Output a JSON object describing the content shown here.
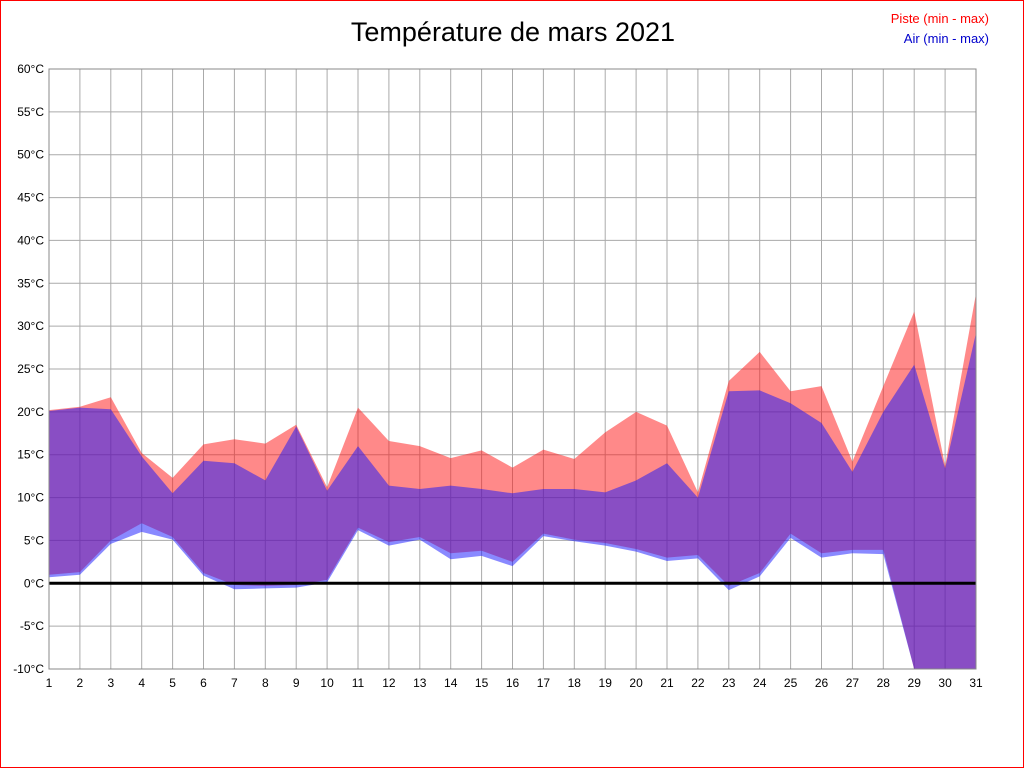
{
  "frame": {
    "border_color": "#ff0000"
  },
  "chart_data": {
    "type": "area",
    "title": "Température de mars 2021",
    "xlabel": "",
    "ylabel": "",
    "xlim": [
      1,
      31
    ],
    "ylim": [
      -10,
      60
    ],
    "ytick_step": 5,
    "ytick_suffix": "°C",
    "grid": true,
    "grid_color": "#aaaaaa",
    "axis_color": "#888888",
    "zero_line": {
      "value": 0,
      "color": "#000000",
      "width": 3
    },
    "legend_position": "top-right",
    "x": [
      1,
      2,
      3,
      4,
      5,
      6,
      7,
      8,
      9,
      10,
      11,
      12,
      13,
      14,
      15,
      16,
      17,
      18,
      19,
      20,
      21,
      22,
      23,
      24,
      25,
      26,
      27,
      28,
      29,
      30,
      31
    ],
    "series": [
      {
        "name": "Piste (min - max)",
        "legend_color": "#ff0000",
        "fill": "#ff1414",
        "fill_opacity": 0.5,
        "max": [
          20.2,
          20.6,
          21.7,
          15.2,
          12.3,
          16.2,
          16.8,
          16.3,
          18.5,
          11.2,
          20.5,
          16.6,
          16.0,
          14.6,
          15.5,
          13.5,
          15.6,
          14.5,
          17.6,
          20.0,
          18.4,
          10.6,
          23.6,
          27.0,
          22.4,
          23.0,
          14.2,
          23.0,
          31.7,
          13.7,
          33.8
        ],
        "min": [
          1.0,
          1.3,
          5.0,
          7.0,
          5.4,
          1.2,
          -0.2,
          -0.3,
          -0.2,
          0.4,
          6.5,
          4.8,
          5.4,
          3.5,
          3.8,
          2.5,
          5.8,
          5.1,
          4.7,
          4.0,
          3.0,
          3.3,
          -0.3,
          1.2,
          5.8,
          3.5,
          3.9,
          3.9,
          -10,
          -10,
          -10
        ]
      },
      {
        "name": "Air (min - max)",
        "legend_color": "#0000cc",
        "fill": "#1414ff",
        "fill_opacity": 0.5,
        "max": [
          20.1,
          20.5,
          20.3,
          14.8,
          10.5,
          14.3,
          14.0,
          12.0,
          18.3,
          10.8,
          16.0,
          11.4,
          11.0,
          11.4,
          11.0,
          10.5,
          11.0,
          11.0,
          10.6,
          12.0,
          14.0,
          10.0,
          22.4,
          22.5,
          21.0,
          18.7,
          13.0,
          20.0,
          25.5,
          13.4,
          29.2
        ],
        "min": [
          0.7,
          1.0,
          4.6,
          6.0,
          5.1,
          0.9,
          -0.7,
          -0.6,
          -0.5,
          0.1,
          6.2,
          4.4,
          5.1,
          2.8,
          3.2,
          2.0,
          5.5,
          4.9,
          4.4,
          3.7,
          2.6,
          2.9,
          -0.8,
          0.8,
          5.3,
          3.0,
          3.5,
          3.4,
          -10,
          -10,
          -10
        ]
      }
    ]
  }
}
